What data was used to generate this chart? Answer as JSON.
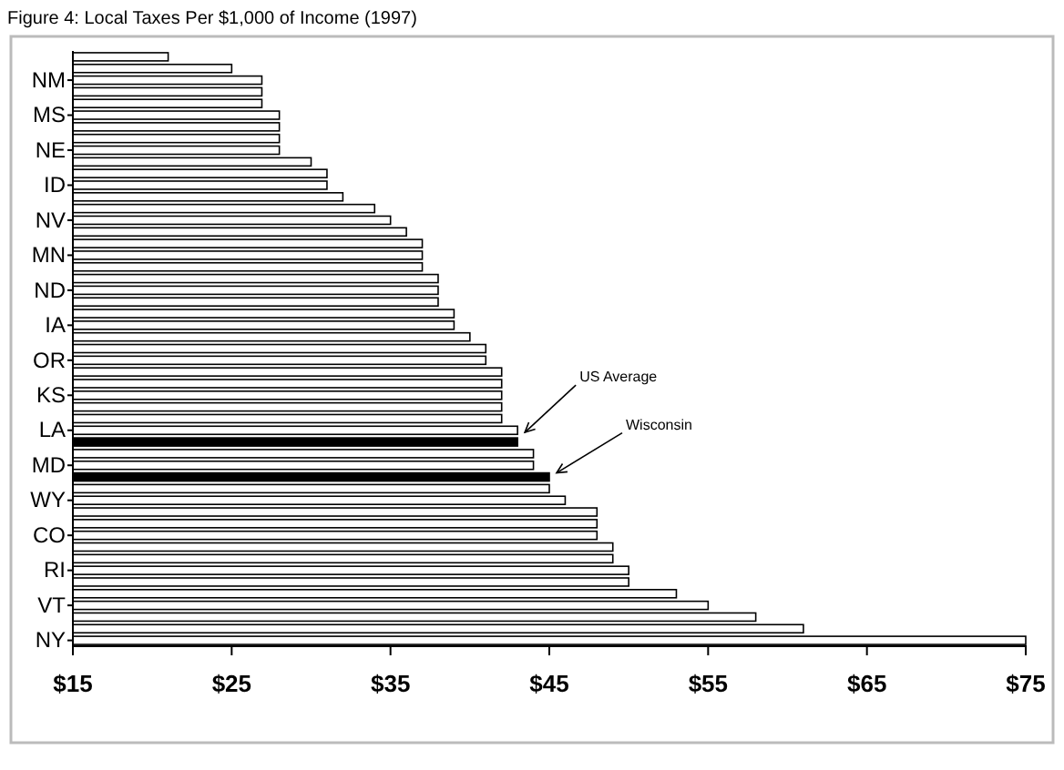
{
  "chart_data": {
    "type": "bar",
    "orientation": "horizontal",
    "title": "Figure 4: Local Taxes Per $1,000 of Income  (1997)",
    "categories": [
      null,
      null,
      "NM",
      null,
      null,
      "MS",
      null,
      null,
      "NE",
      null,
      null,
      "ID",
      null,
      null,
      "NV",
      null,
      null,
      "MN",
      null,
      null,
      "ND",
      null,
      null,
      "IA",
      null,
      null,
      "OR",
      null,
      null,
      "KS",
      null,
      null,
      "LA",
      null,
      null,
      "MD",
      null,
      null,
      "WY",
      null,
      null,
      "CO",
      null,
      null,
      "RI",
      null,
      null,
      "VT",
      null,
      null,
      "NY"
    ],
    "values": [
      21,
      25,
      26.9,
      26.9,
      26.9,
      28,
      28,
      28,
      28,
      30,
      31,
      31,
      32,
      34,
      35,
      36,
      37,
      37,
      37,
      38,
      38,
      38,
      39,
      39,
      40,
      41,
      41,
      42,
      42,
      42,
      42,
      42,
      43,
      43,
      44,
      44,
      45,
      45,
      46,
      48,
      48,
      48,
      49,
      49,
      50,
      50,
      53,
      55,
      58,
      61,
      75
    ],
    "colors": [
      "#ffffff",
      "#ffffff",
      "#ffffff",
      "#ffffff",
      "#ffffff",
      "#ffffff",
      "#ffffff",
      "#ffffff",
      "#ffffff",
      "#ffffff",
      "#ffffff",
      "#ffffff",
      "#ffffff",
      "#ffffff",
      "#ffffff",
      "#ffffff",
      "#ffffff",
      "#ffffff",
      "#ffffff",
      "#ffffff",
      "#ffffff",
      "#ffffff",
      "#ffffff",
      "#ffffff",
      "#ffffff",
      "#ffffff",
      "#ffffff",
      "#ffffff",
      "#ffffff",
      "#ffffff",
      "#ffffff",
      "#ffffff",
      "#ffffff",
      "#000000",
      "#ffffff",
      "#ffffff",
      "#000000",
      "#ffffff",
      "#ffffff",
      "#ffffff",
      "#ffffff",
      "#ffffff",
      "#ffffff",
      "#ffffff",
      "#ffffff",
      "#ffffff",
      "#ffffff",
      "#ffffff",
      "#ffffff",
      "#ffffff",
      "#ffffff"
    ],
    "xlim": [
      15,
      75
    ],
    "xticks": [
      {
        "value": 15,
        "label": "$15"
      },
      {
        "value": 25,
        "label": "$25"
      },
      {
        "value": 35,
        "label": "$35"
      },
      {
        "value": 45,
        "label": "$45"
      },
      {
        "value": 55,
        "label": "$55"
      },
      {
        "value": 65,
        "label": "$65"
      },
      {
        "value": 75,
        "label": "$75"
      }
    ],
    "annotations": [
      "US Average",
      "Wisconsin"
    ]
  }
}
